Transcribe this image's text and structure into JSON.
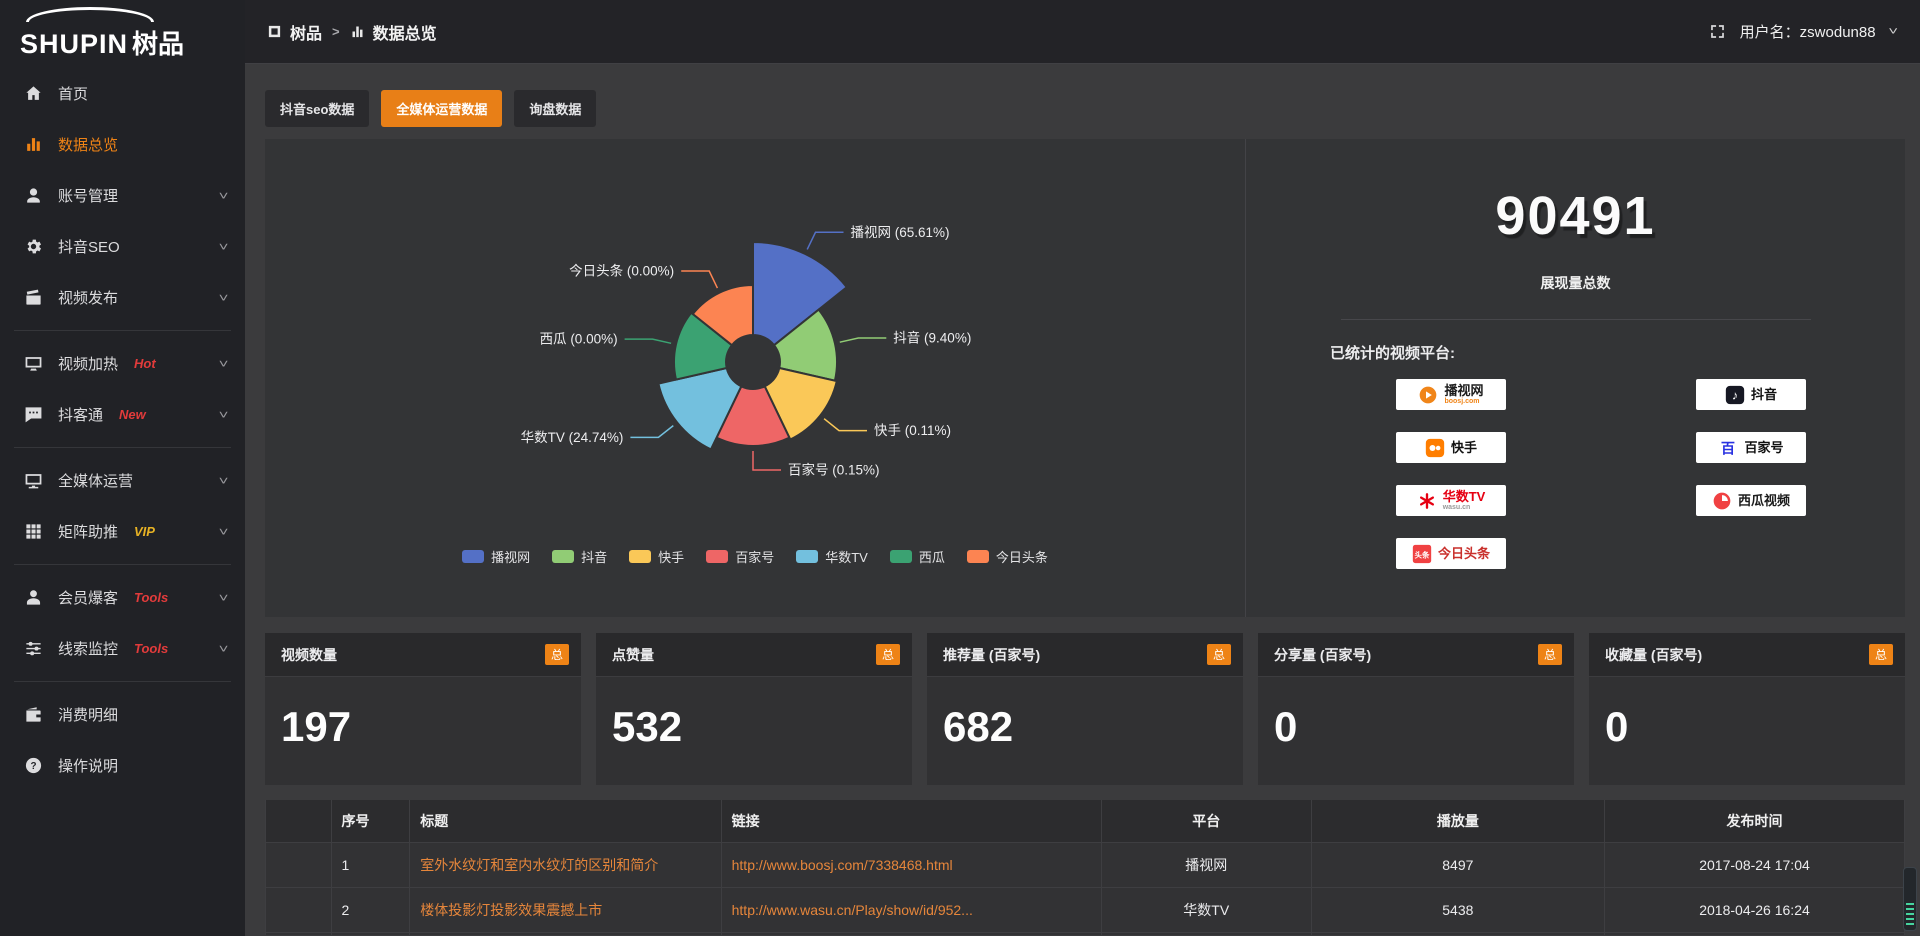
{
  "app": {
    "logo_en": "SHUPIN",
    "logo_cn": "树品"
  },
  "topbar": {
    "breadcrumb_root": "树品",
    "breadcrumb_separator": ">",
    "breadcrumb_current": "数据总览",
    "user_label": "用户名：zswodun88"
  },
  "sidebar": {
    "items": [
      {
        "label": "首页",
        "icon": "home"
      },
      {
        "label": "数据总览",
        "icon": "chart",
        "active": true
      },
      {
        "label": "账号管理",
        "icon": "user",
        "chevron": true
      },
      {
        "label": "抖音SEO",
        "icon": "gear",
        "chevron": true
      },
      {
        "label": "视频发布",
        "icon": "video",
        "chevron": true
      },
      {
        "divider": true
      },
      {
        "label": "视频加热",
        "icon": "heat",
        "tag": "Hot",
        "tag_color": "#e23b3b",
        "chevron": true
      },
      {
        "label": "抖客通",
        "icon": "chat",
        "tag": "New",
        "tag_color": "#e23b3b",
        "chevron": true
      },
      {
        "divider": true
      },
      {
        "label": "全媒体运营",
        "icon": "monitor",
        "chevron": true
      },
      {
        "label": "矩阵助推",
        "icon": "grid",
        "tag": "VIP",
        "tag_color": "#e8b324",
        "chevron": true
      },
      {
        "divider": true
      },
      {
        "label": "会员爆客",
        "icon": "member",
        "tag": "Tools",
        "tag_color": "#e23b3b",
        "chevron": true
      },
      {
        "label": "线索监控",
        "icon": "sliders",
        "tag": "Tools",
        "tag_color": "#e23b3b",
        "chevron": true
      },
      {
        "divider": true
      },
      {
        "label": "消费明细",
        "icon": "wallet"
      },
      {
        "label": "操作说明",
        "icon": "question"
      }
    ]
  },
  "tabs": [
    {
      "label": "抖音seo数据",
      "active": false
    },
    {
      "label": "全媒体运营数据",
      "active": true
    },
    {
      "label": "询盘数据",
      "active": false
    }
  ],
  "chart_data": {
    "type": "pie",
    "subtype": "nightingale-rose",
    "unit": "percent",
    "equal_angles": true,
    "inner_radius": 27,
    "legend_position": "bottom",
    "slices": [
      {
        "name": "播视网",
        "value": 65.61,
        "color": "#5470c6",
        "display_radius": 120
      },
      {
        "name": "抖音",
        "value": 9.4,
        "color": "#91cc75",
        "display_radius": 84
      },
      {
        "name": "快手",
        "value": 0.11,
        "color": "#fac858",
        "display_radius": 86
      },
      {
        "name": "百家号",
        "value": 0.15,
        "color": "#ee6666",
        "display_radius": 84
      },
      {
        "name": "华数TV",
        "value": 24.74,
        "color": "#73c0de",
        "display_radius": 97
      },
      {
        "name": "西瓜",
        "value": 0.0,
        "color": "#3ba272",
        "display_radius": 79
      },
      {
        "name": "今日头条",
        "value": 0.0,
        "color": "#fc8452",
        "display_radius": 77
      }
    ],
    "legend": [
      "播视网",
      "抖音",
      "快手",
      "百家号",
      "华数TV",
      "西瓜",
      "今日头条"
    ]
  },
  "overview": {
    "total_value": "90491",
    "total_label": "展现量总数",
    "platforms_label": "已统计的视频平台:",
    "platform_badges": [
      {
        "label": "播视网",
        "sub": "boosj.com",
        "type": "boosj",
        "col": 1
      },
      {
        "label": "抖音",
        "sub": "",
        "type": "douyin",
        "col": 2
      },
      {
        "label": "快手",
        "sub": "",
        "type": "kuaishou",
        "col": 1
      },
      {
        "label": "百家号",
        "sub": "",
        "type": "baijiahao",
        "col": 2
      },
      {
        "label": "华数TV",
        "sub": "wasu.cn",
        "type": "wasu",
        "col": 1
      },
      {
        "label": "西瓜视频",
        "sub": "",
        "type": "xigua",
        "col": 2
      },
      {
        "label": "今日头条",
        "sub": "",
        "type": "toutiao",
        "col": 1
      }
    ]
  },
  "stat_cards": [
    {
      "title": "视频数量",
      "badge": "总",
      "value": "197"
    },
    {
      "title": "点赞量",
      "badge": "总",
      "value": "532"
    },
    {
      "title": "推荐量 (百家号)",
      "badge": "总",
      "value": "682"
    },
    {
      "title": "分享量 (百家号)",
      "badge": "总",
      "value": "0"
    },
    {
      "title": "收藏量 (百家号)",
      "badge": "总",
      "value": "0"
    }
  ],
  "table": {
    "headers": [
      "序号",
      "标题",
      "链接",
      "平台",
      "播放量",
      "发布时间"
    ],
    "rows": [
      {
        "index": "1",
        "title": "室外水纹灯和室内水纹灯的区别和简介",
        "link": "http://www.boosj.com/7338468.html",
        "platform": "播视网",
        "plays": "8497",
        "time": "2017-08-24 17:04"
      },
      {
        "index": "2",
        "title": "楼体投影灯投影效果震撼上市",
        "link": "http://www.wasu.cn/Play/show/id/952...",
        "platform": "华数TV",
        "plays": "5438",
        "time": "2018-04-26 16:24"
      }
    ]
  }
}
